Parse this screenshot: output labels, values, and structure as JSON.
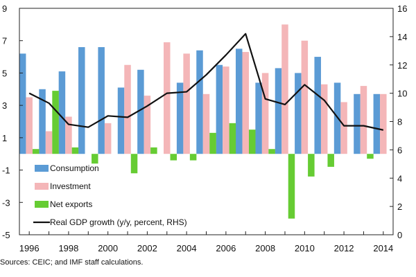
{
  "chart_data": {
    "type": "bar",
    "title": "",
    "categories": [
      "1996",
      "1997",
      "1998",
      "1999",
      "2000",
      "2001",
      "2002",
      "2003",
      "2004",
      "2005",
      "2006",
      "2007",
      "2008",
      "2009",
      "2010",
      "2011",
      "2012",
      "2013",
      "2014"
    ],
    "x_tick_labels": [
      "1996",
      "1998",
      "2000",
      "2002",
      "2004",
      "2006",
      "2008",
      "2010",
      "2012",
      "2014"
    ],
    "left_axis": {
      "ylim": [
        -5,
        9
      ],
      "ticks": [
        9,
        7,
        5,
        3,
        1,
        -1,
        -3,
        -5
      ],
      "tick_labels": [
        "9",
        "7",
        "5",
        "3",
        "1",
        "-1",
        "-3",
        "-5"
      ]
    },
    "right_axis": {
      "ylim": [
        0,
        16
      ],
      "ticks": [
        16,
        14,
        12,
        10,
        8,
        6,
        4,
        2,
        0
      ],
      "tick_labels": [
        "16",
        "14",
        "12",
        "10",
        "8",
        "6",
        "4",
        "2",
        "0"
      ]
    },
    "series": [
      {
        "name": "Consumption",
        "kind": "bar",
        "axis": "left",
        "color": "#5b9bd5",
        "values": [
          6.2,
          4.0,
          5.1,
          6.6,
          6.6,
          4.1,
          5.2,
          0,
          4.4,
          6.4,
          5.5,
          6.5,
          4.4,
          5.3,
          5.0,
          6.0,
          4.4,
          3.7,
          3.7
        ]
      },
      {
        "name": "Investment",
        "kind": "bar",
        "axis": "left",
        "color": "#f4b6b8",
        "values": [
          3.5,
          1.4,
          2.3,
          0,
          1.9,
          5.5,
          3.6,
          6.9,
          6.2,
          3.7,
          5.4,
          6.3,
          5.0,
          8.0,
          7.0,
          4.3,
          3.2,
          4.2,
          3.7
        ]
      },
      {
        "name": "Net exports",
        "kind": "bar",
        "axis": "left",
        "color": "#66cc33",
        "values": [
          0.3,
          3.9,
          0.4,
          -0.6,
          0,
          -1.2,
          0.4,
          -0.4,
          -0.4,
          1.3,
          1.9,
          1.5,
          0.3,
          -4.0,
          -1.4,
          -0.8,
          0,
          -0.3,
          0
        ]
      },
      {
        "name": "Real GDP growth (y/y, percent, RHS)",
        "kind": "line",
        "axis": "right",
        "color": "#111111",
        "values": [
          10.0,
          9.3,
          7.8,
          7.6,
          8.4,
          8.3,
          9.1,
          10.0,
          10.1,
          11.3,
          12.7,
          14.2,
          9.6,
          9.2,
          10.6,
          9.5,
          7.7,
          7.7,
          7.4
        ]
      }
    ],
    "legend": {
      "placement": "bottom-left",
      "items": [
        {
          "label": "Consumption",
          "swatch": "bar",
          "color": "#5b9bd5"
        },
        {
          "label": "Investment",
          "swatch": "bar",
          "color": "#f4b6b8"
        },
        {
          "label": "Net exports",
          "swatch": "bar",
          "color": "#66cc33"
        },
        {
          "label": "Real GDP growth (y/y, percent, RHS)",
          "swatch": "line",
          "color": "#111111"
        }
      ]
    },
    "grid": false
  },
  "source_note": "Sources: CEIC; and IMF staff calculations."
}
